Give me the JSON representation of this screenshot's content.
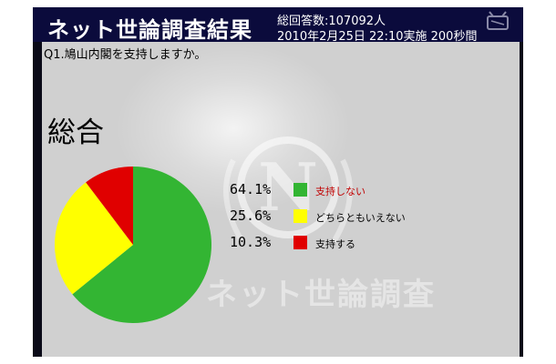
{
  "header": {
    "title": "ネット世論調査結果",
    "total_votes": "総回答数:107092人",
    "timestamp": "2010年2月25日 22:10実施 200秒間",
    "corner_icon": "tv-icon"
  },
  "question": "Q1.鳩山内閣を支持しますか。",
  "section_title": "総合",
  "watermark": {
    "letter": "N",
    "text": "ネット世論調査"
  },
  "chart_data": {
    "type": "pie",
    "title": "総合",
    "slices": [
      {
        "label": "支持しない",
        "pct_label": "64.1%",
        "value": 64.1,
        "color": "#33b533",
        "label_color": "#c00000"
      },
      {
        "label": "どちらともいえない",
        "pct_label": "25.6%",
        "value": 25.6,
        "color": "#ffff00",
        "label_color": "#000000"
      },
      {
        "label": "支持する",
        "pct_label": "10.3%",
        "value": 10.3,
        "color": "#e00000",
        "label_color": "#000000"
      }
    ],
    "legend": "right",
    "start": "top",
    "direction": "clockwise"
  }
}
